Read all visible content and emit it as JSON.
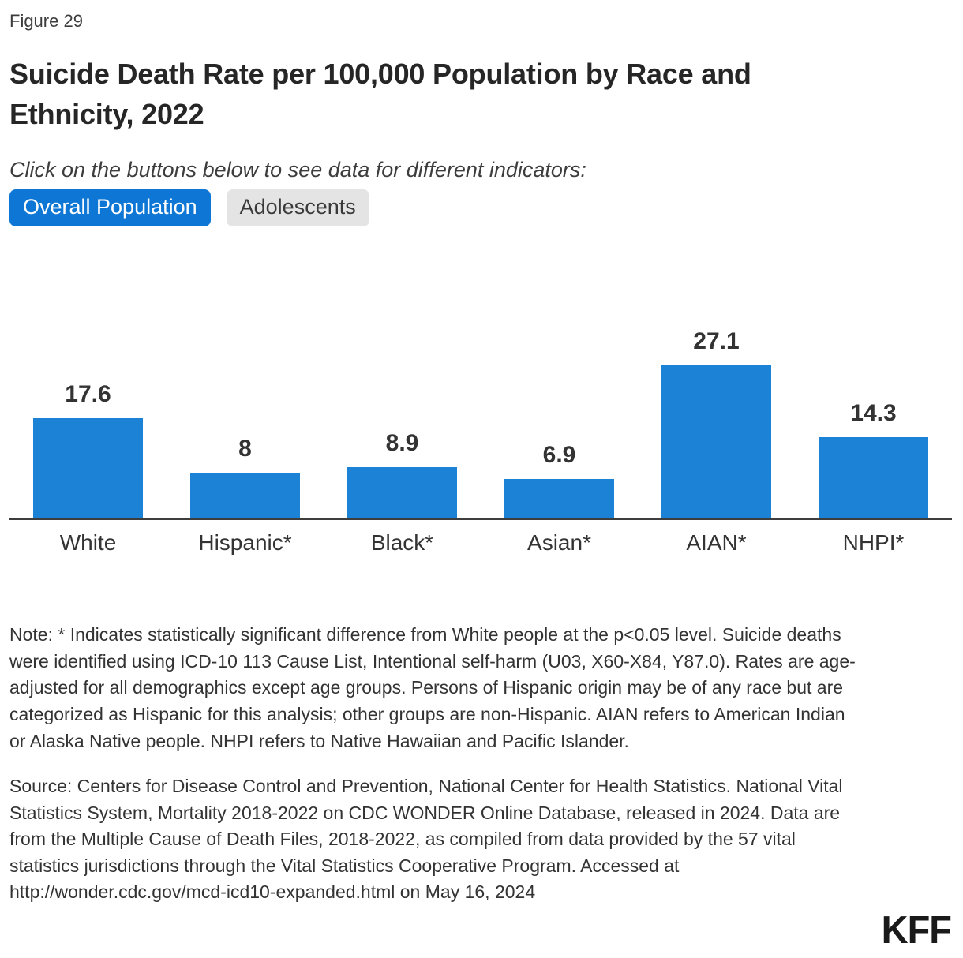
{
  "figure_label": "Figure 29",
  "title": "Suicide Death Rate per 100,000 Population by Race and Ethnicity, 2022",
  "instruction": "Click on the buttons below to see data for different indicators:",
  "buttons": [
    {
      "label": "Overall Population",
      "active": true
    },
    {
      "label": "Adolescents",
      "active": false
    }
  ],
  "chart_data": {
    "type": "bar",
    "title": "Suicide Death Rate per 100,000 Population by Race and Ethnicity, 2022",
    "categories": [
      "White",
      "Hispanic*",
      "Black*",
      "Asian*",
      "AIAN*",
      "NHPI*"
    ],
    "values": [
      17.6,
      8,
      8.9,
      6.9,
      27.1,
      14.3
    ],
    "xlabel": "",
    "ylabel": "",
    "ylim": [
      0,
      36
    ],
    "grid": false,
    "legend": "none",
    "bar_color": "#1c82d6",
    "axis_line_color": "#3d3d3d",
    "value_labels_bold": true
  },
  "note": "Note: * Indicates statistically significant difference from White people at the p<0.05 level. Suicide deaths were identified using ICD-10 113 Cause List, Intentional self-harm (U03, X60-X84, Y87.0). Rates are age-adjusted for all demographics except age groups. Persons of Hispanic origin may be of any race but are categorized as Hispanic for this analysis; other groups are non-Hispanic. AIAN refers to American Indian or Alaska Native people. NHPI refers to Native Hawaiian and Pacific Islander.",
  "source": "Source: Centers for Disease Control and Prevention, National Center for Health Statistics. National Vital Statistics System, Mortality 2018-2022 on CDC WONDER Online Database, released in 2024. Data are from the Multiple Cause of Death Files, 2018-2022, as compiled from data provided by the 57 vital statistics jurisdictions through the Vital Statistics Cooperative Program. Accessed at http://wonder.cdc.gov/mcd-icd10-expanded.html on May 16, 2024",
  "logo": "KFF",
  "colors": {
    "bar_blue": "#1c82d6",
    "active_button_blue": "#0e77d6",
    "inactive_button_gray": "#e4e4e4",
    "text_dark": "#333333"
  }
}
